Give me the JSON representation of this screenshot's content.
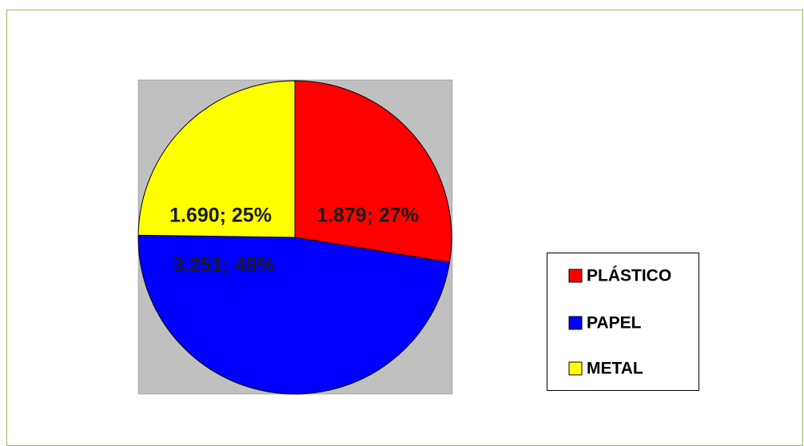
{
  "chart_data": {
    "type": "pie",
    "categories": [
      "PLÁSTICO",
      "PAPEL",
      "METAL"
    ],
    "values": [
      1879,
      3251,
      1690
    ],
    "value_labels": [
      "1.879; 27%",
      "3.251; 48%",
      "1.690; 25%"
    ],
    "colors": [
      "#ff0000",
      "#0000ff",
      "#ffff00"
    ],
    "legend": "right"
  }
}
